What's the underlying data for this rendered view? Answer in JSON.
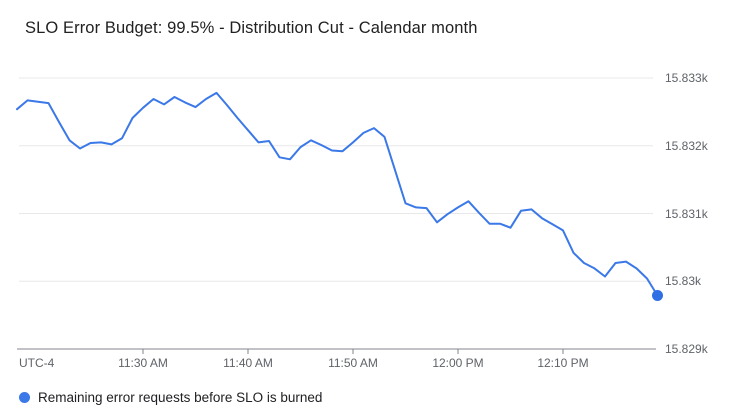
{
  "title": "SLO Error Budget: 99.5% - Distribution Cut - Calendar month",
  "legend": {
    "label": "Remaining error requests before SLO is burned",
    "color": "#3b78e8"
  },
  "colors": {
    "line": "#3b78e8",
    "marker": "#2f6fe4",
    "grid": "#e8e8e8",
    "axis": "#80868b",
    "tick_text": "#5f6368",
    "title_text": "#212121",
    "legend_text": "#202124",
    "background": "#ffffff"
  },
  "chart_data": {
    "type": "line",
    "title": "SLO Error Budget: 99.5% - Distribution Cut - Calendar month",
    "legend_position": "bottom-left",
    "grid": "horizontal-only",
    "x_axis": {
      "timezone_label": "UTC-4",
      "start_time": "11:18 AM",
      "end_time": "12:19 PM",
      "point_interval_minutes": 1,
      "ticks": [
        {
          "label": "11:30 AM",
          "minute": 12
        },
        {
          "label": "11:40 AM",
          "minute": 22
        },
        {
          "label": "11:50 AM",
          "minute": 32
        },
        {
          "label": "12:00 PM",
          "minute": 42
        },
        {
          "label": "12:10 PM",
          "minute": 52
        }
      ]
    },
    "y_axis": {
      "unit": "requests",
      "range": [
        15829,
        15833.15
      ],
      "ticks": [
        {
          "label": "15.833k",
          "value": 15833
        },
        {
          "label": "15.832k",
          "value": 15832
        },
        {
          "label": "15.831k",
          "value": 15831
        },
        {
          "label": "15.83k",
          "value": 15830
        },
        {
          "label": "15.829k",
          "value": 15829
        }
      ]
    },
    "series": [
      {
        "name": "Remaining error requests before SLO is burned",
        "color": "#3b78e8",
        "end_point_marker": true,
        "values": [
          15832.54,
          15832.67,
          15832.65,
          15832.63,
          15832.35,
          15832.08,
          15831.96,
          15832.04,
          15832.05,
          15832.02,
          15832.11,
          15832.41,
          15832.56,
          15832.69,
          15832.61,
          15832.72,
          15832.64,
          15832.57,
          15832.69,
          15832.78,
          15832.6,
          15832.41,
          15832.23,
          15832.05,
          15832.07,
          15831.83,
          15831.8,
          15831.98,
          15832.08,
          15832.01,
          15831.93,
          15831.92,
          15832.05,
          15832.19,
          15832.26,
          15832.13,
          15831.64,
          15831.15,
          15831.09,
          15831.08,
          15830.87,
          15830.99,
          15831.09,
          15831.18,
          15831.01,
          15830.85,
          15830.85,
          15830.79,
          15831.04,
          15831.06,
          15830.93,
          15830.84,
          15830.75,
          15830.42,
          15830.27,
          15830.19,
          15830.07,
          15830.27,
          15830.29,
          15830.19,
          15830.04,
          15829.79
        ]
      }
    ]
  }
}
